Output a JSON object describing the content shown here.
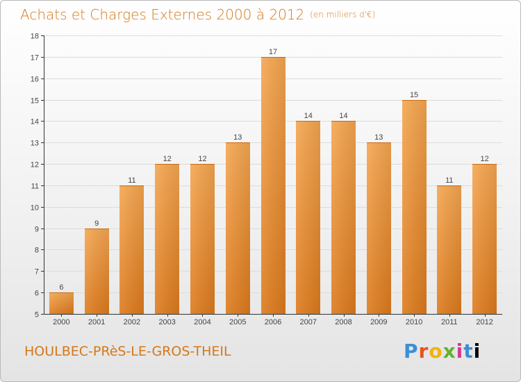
{
  "title": "Achats et Charges Externes 2000 à 2012",
  "subtitle": "(en milliers d'€)",
  "city": "HOULBEC-PRèS-LE-GROS-THEIL",
  "logo": "Proxiti",
  "colors": {
    "accent": "#d4781a",
    "bar_top": "#f5a650",
    "bar_bottom": "#dd7a1c",
    "grid": "#dcdcdc",
    "axis": "#333333",
    "label": "#444444"
  },
  "chart_data": {
    "type": "bar",
    "categories": [
      "2000",
      "2001",
      "2002",
      "2003",
      "2004",
      "2005",
      "2006",
      "2007",
      "2008",
      "2009",
      "2010",
      "2011",
      "2012"
    ],
    "values": [
      6,
      9,
      11,
      12,
      12,
      13,
      17,
      14,
      14,
      13,
      15,
      11,
      12
    ],
    "title": "Achats et Charges Externes 2000 à 2012",
    "subtitle": "(en milliers d'€)",
    "xlabel": "",
    "ylabel": "",
    "ylim": [
      5,
      18
    ],
    "yticks": [
      5,
      6,
      7,
      8,
      9,
      10,
      11,
      12,
      13,
      14,
      15,
      16,
      17,
      18
    ],
    "grid": true,
    "data_labels": true
  }
}
